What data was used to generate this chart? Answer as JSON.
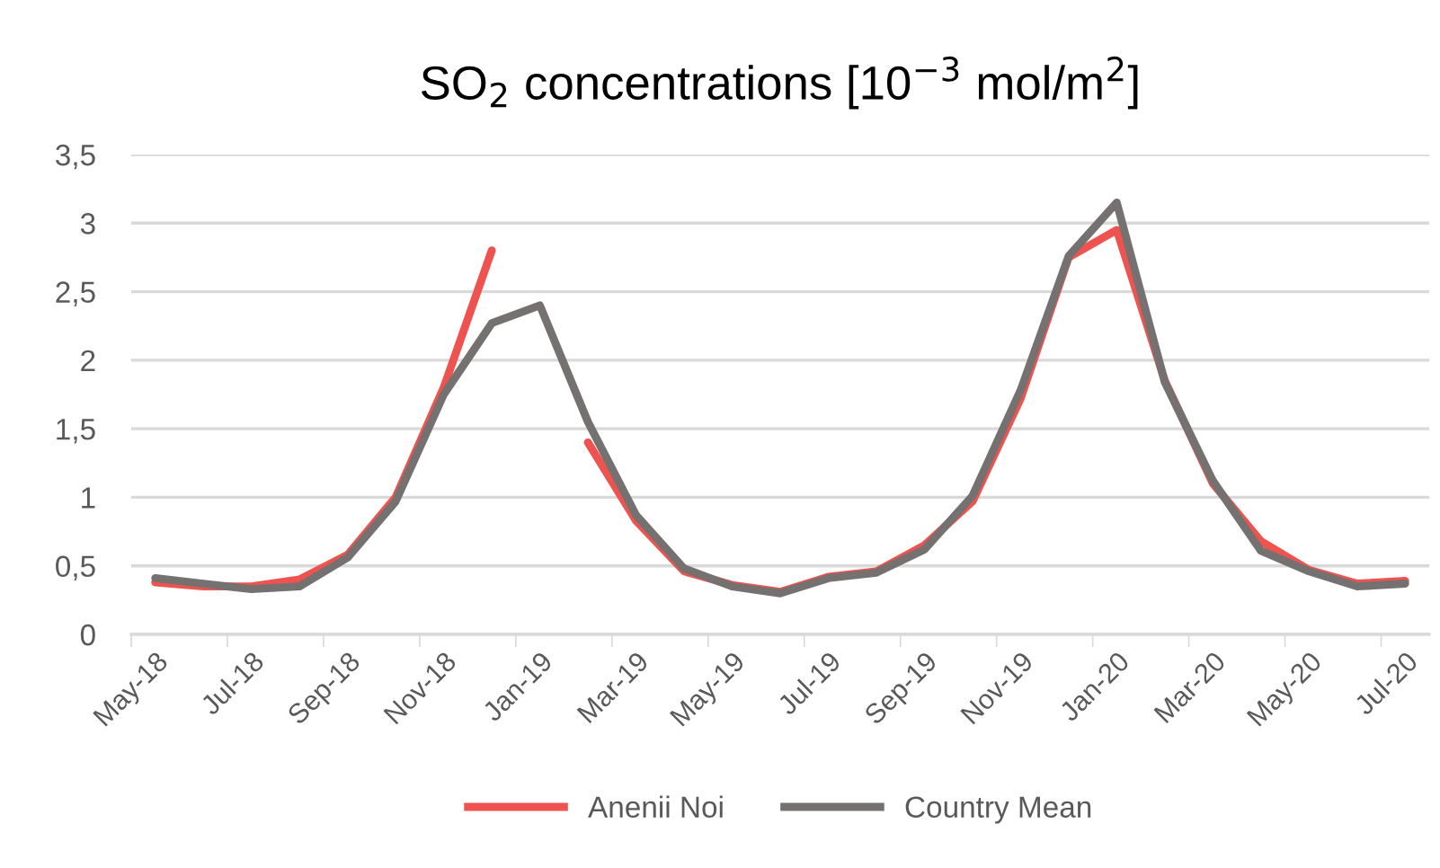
{
  "chart_data": {
    "type": "line",
    "title": "SO$_{2}$ concentrations [10$^{−3}$ mol/m$^{2}$]",
    "categories": [
      "May-18",
      null,
      "Jul-18",
      null,
      "Sep-18",
      null,
      "Nov-18",
      null,
      "Jan-19",
      null,
      "Mar-19",
      null,
      "May-19",
      null,
      "Jul-19",
      null,
      "Sep-19",
      null,
      "Nov-19",
      null,
      "Jan-20",
      null,
      "Mar-20",
      null,
      "May-20",
      null,
      "Jul-20"
    ],
    "series": [
      {
        "name": "Anenii Noi",
        "color": "#ef5350",
        "values": [
          0.38,
          0.35,
          0.35,
          0.4,
          0.58,
          1.0,
          1.8,
          2.8,
          null,
          1.4,
          0.83,
          0.46,
          0.36,
          0.31,
          0.42,
          0.46,
          0.65,
          0.97,
          1.72,
          2.75,
          2.95,
          1.85,
          1.1,
          0.68,
          0.47,
          0.37,
          0.39
        ]
      },
      {
        "name": "Country Mean",
        "color": "#767171",
        "values": [
          0.41,
          0.37,
          0.33,
          0.35,
          0.56,
          0.97,
          1.75,
          2.27,
          2.4,
          1.55,
          0.87,
          0.48,
          0.35,
          0.3,
          0.41,
          0.45,
          0.62,
          1.01,
          1.78,
          2.76,
          3.15,
          1.84,
          1.12,
          0.61,
          0.46,
          0.35,
          0.37
        ]
      }
    ],
    "ylim": [
      0,
      3.5
    ],
    "yticks": [
      {
        "value": 0,
        "label": "0"
      },
      {
        "value": 0.5,
        "label": "0,5"
      },
      {
        "value": 1,
        "label": "1"
      },
      {
        "value": 1.5,
        "label": "1,5"
      },
      {
        "value": 2,
        "label": "2"
      },
      {
        "value": 2.5,
        "label": "2,5"
      },
      {
        "value": 3,
        "label": "3"
      },
      {
        "value": 3.5,
        "label": "3,5"
      }
    ],
    "grid": "y",
    "legend": "bottom",
    "line_style": "solid",
    "marker": "none"
  }
}
